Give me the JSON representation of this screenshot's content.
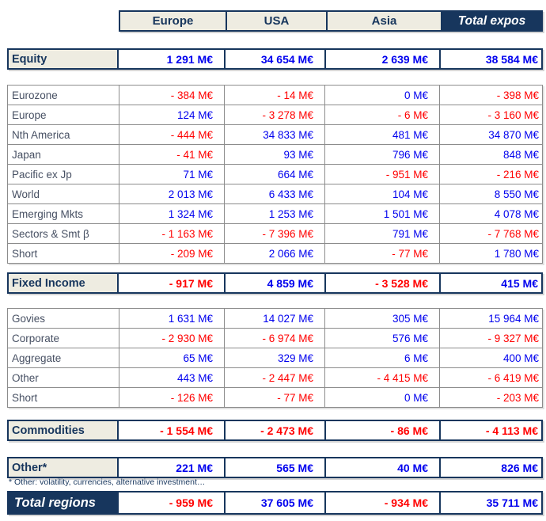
{
  "table": {
    "columns": [
      "Europe",
      "USA",
      "Asia",
      "Total expos"
    ],
    "footnote": "* Other: volatility, currencies, alternative investment…",
    "sections": [
      {
        "kind": "section",
        "id": "equity",
        "label": "Equity",
        "values": [
          "1 291 M€",
          "34 654 M€",
          "2 639 M€",
          "38 584 M€"
        ]
      },
      {
        "kind": "subtable",
        "id": "equity-breakdown",
        "rows": [
          {
            "label": "Eurozone",
            "values": [
              "- 384 M€",
              "- 14 M€",
              "0 M€",
              "- 398 M€"
            ]
          },
          {
            "label": "Europe",
            "values": [
              "124 M€",
              "- 3 278 M€",
              "- 6 M€",
              "- 3 160 M€"
            ]
          },
          {
            "label": "Nth America",
            "values": [
              "- 444 M€",
              "34 833 M€",
              "481 M€",
              "34 870 M€"
            ]
          },
          {
            "label": "Japan",
            "values": [
              "- 41 M€",
              "93 M€",
              "796 M€",
              "848 M€"
            ]
          },
          {
            "label": "Pacific ex Jp",
            "values": [
              "71 M€",
              "664 M€",
              "- 951 M€",
              "- 216 M€"
            ]
          },
          {
            "label": "World",
            "values": [
              "2 013 M€",
              "6 433 M€",
              "104 M€",
              "8 550 M€"
            ]
          },
          {
            "label": "Emerging Mkts",
            "values": [
              "1 324 M€",
              "1 253 M€",
              "1 501 M€",
              "4 078 M€"
            ]
          },
          {
            "label": "Sectors & Smt β",
            "values": [
              "- 1 163 M€",
              "- 7 396 M€",
              "791 M€",
              "- 7 768 M€"
            ]
          },
          {
            "label": "Short",
            "values": [
              "- 209 M€",
              "2 066 M€",
              "- 77 M€",
              "1 780 M€"
            ]
          }
        ]
      },
      {
        "kind": "section",
        "id": "fixed-income",
        "label": "Fixed Income",
        "values": [
          "- 917 M€",
          "4 859 M€",
          "- 3 528 M€",
          "415 M€"
        ]
      },
      {
        "kind": "subtable",
        "id": "fixed-income-breakdown",
        "rows": [
          {
            "label": "Govies",
            "values": [
              "1 631 M€",
              "14 027 M€",
              "305 M€",
              "15 964 M€"
            ]
          },
          {
            "label": "Corporate",
            "values": [
              "- 2 930 M€",
              "- 6 974 M€",
              "576 M€",
              "- 9 327 M€"
            ]
          },
          {
            "label": "Aggregate",
            "values": [
              "65 M€",
              "329 M€",
              "6 M€",
              "400 M€"
            ]
          },
          {
            "label": "Other",
            "values": [
              "443 M€",
              "- 2 447 M€",
              "- 4 415 M€",
              "- 6 419 M€"
            ]
          },
          {
            "label": "Short",
            "values": [
              "- 126 M€",
              "- 77 M€",
              "0 M€",
              "- 203 M€"
            ]
          }
        ]
      },
      {
        "kind": "section",
        "id": "commodities",
        "label": "Commodities",
        "values": [
          "- 1 554 M€",
          "- 2 473 M€",
          "- 86 M€",
          "- 4 113 M€"
        ]
      },
      {
        "kind": "section",
        "id": "other",
        "label": "Other*",
        "values": [
          "221 M€",
          "565 M€",
          "40 M€",
          "826 M€"
        ]
      },
      {
        "kind": "section",
        "id": "total-regions",
        "variant": "total",
        "label": "Total regions",
        "values": [
          "- 959 M€",
          "37 605 M€",
          "- 934 M€",
          "35 711 M€"
        ]
      }
    ]
  },
  "colors": {
    "navy": "#17365D",
    "beige": "#EEECE1",
    "positive_value": "#0000EE",
    "negative_value": "#FF0000",
    "gridline": "#8C8C8C"
  }
}
